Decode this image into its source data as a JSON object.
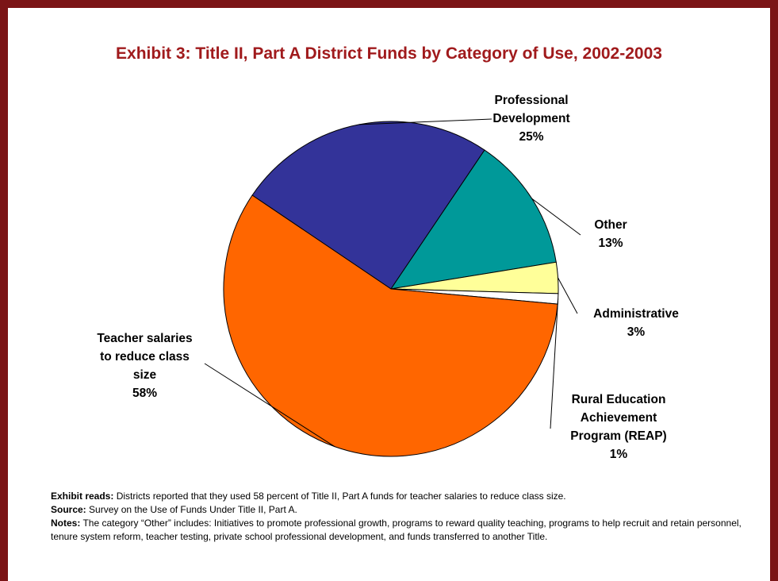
{
  "chart_data": {
    "type": "pie",
    "title": "Exhibit 3: Title II, Part A District Funds by Category of Use, 2002-2003",
    "slices": [
      {
        "label_lines": [
          "Professional",
          "Development"
        ],
        "pct_label": "25%",
        "value": 25,
        "color": "#333399"
      },
      {
        "label_lines": [
          "Other"
        ],
        "pct_label": "13%",
        "value": 13,
        "color": "#009999"
      },
      {
        "label_lines": [
          "Administrative"
        ],
        "pct_label": "3%",
        "value": 3,
        "color": "#ffff99"
      },
      {
        "label_lines": [
          "Rural Education",
          "Achievement",
          "Program (REAP)"
        ],
        "pct_label": "1%",
        "value": 1,
        "color": "#ffffff"
      },
      {
        "label_lines": [
          "Teacher salaries",
          "to reduce class",
          "size"
        ],
        "pct_label": "58%",
        "value": 58,
        "color": "#ff6600"
      }
    ]
  },
  "notes": {
    "reads_label": "Exhibit reads:",
    "reads_text": " Districts reported that they used 58 percent of Title II, Part A funds for teacher salaries to reduce class size.",
    "source_label": "Source:",
    "source_text": " Survey on the Use of Funds Under Title II, Part A.",
    "notes_label": "Notes:",
    "notes_text": " The category “Other” includes: Initiatives to promote professional growth, programs to reward quality teaching, programs to help recruit and retain personnel, tenure system reform, teacher testing, private school professional development, and funds transferred to another Title."
  },
  "colors": {
    "frame": "#7b1416",
    "title": "#a01a1c"
  }
}
